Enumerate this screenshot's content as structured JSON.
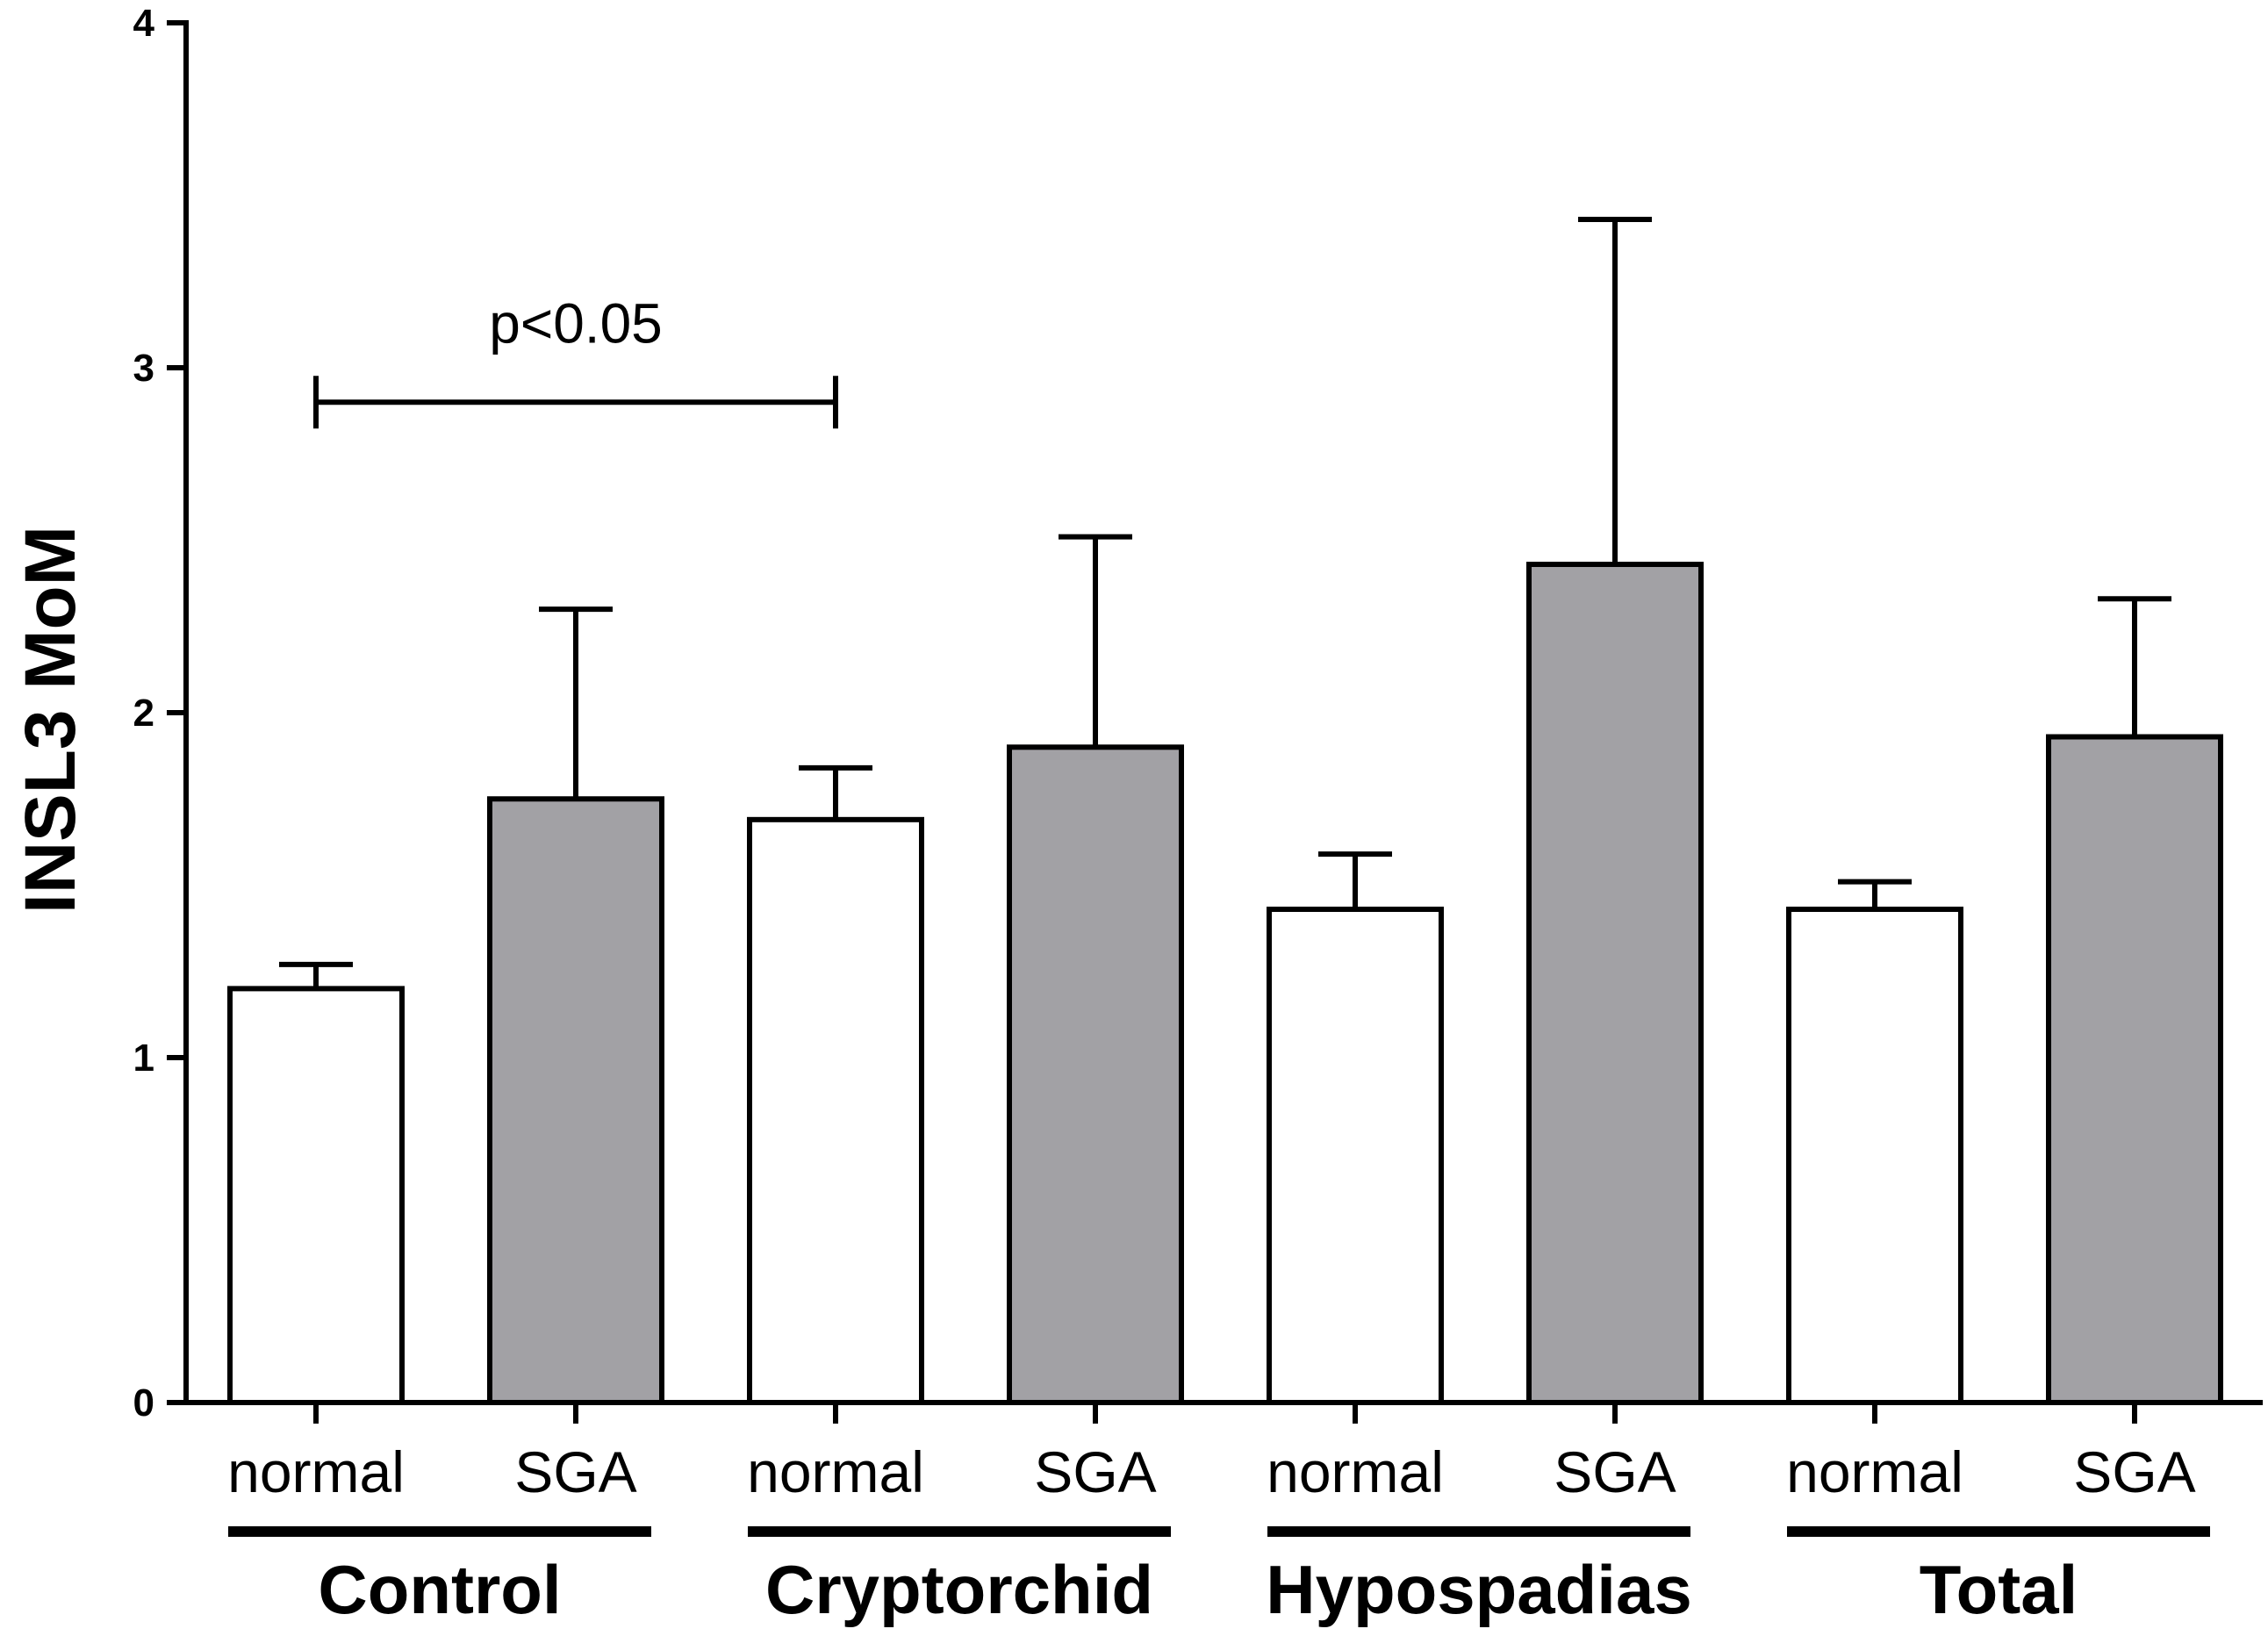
{
  "chart_data": {
    "type": "bar",
    "title": "",
    "xlabel": "",
    "ylabel": "INSL3 MoM",
    "ylim": [
      0,
      4
    ],
    "yticks": [
      0,
      1,
      2,
      3,
      4
    ],
    "tick_labels": [
      "0",
      "1",
      "2",
      "3",
      "4"
    ],
    "grid": false,
    "categories": [
      "normal",
      "SGA",
      "normal",
      "SGA",
      "normal",
      "SGA",
      "normal",
      "SGA"
    ],
    "groups": [
      "Control",
      "Cryptorchid",
      "Hypospadias",
      "Total"
    ],
    "values": [
      1.2,
      1.75,
      1.69,
      1.9,
      1.43,
      2.43,
      1.43,
      1.93
    ],
    "errors": [
      0.07,
      0.55,
      0.15,
      0.61,
      0.16,
      1.0,
      0.08,
      0.4
    ],
    "bar_colors": [
      "#ffffff",
      "#a2a1a5",
      "#ffffff",
      "#a2a1a5",
      "#ffffff",
      "#a2a1a5",
      "#ffffff",
      "#a2a1a5"
    ],
    "annotation": {
      "text": "p<0.05",
      "from_bar": 0,
      "to_bar": 2,
      "y": 2.9
    }
  }
}
